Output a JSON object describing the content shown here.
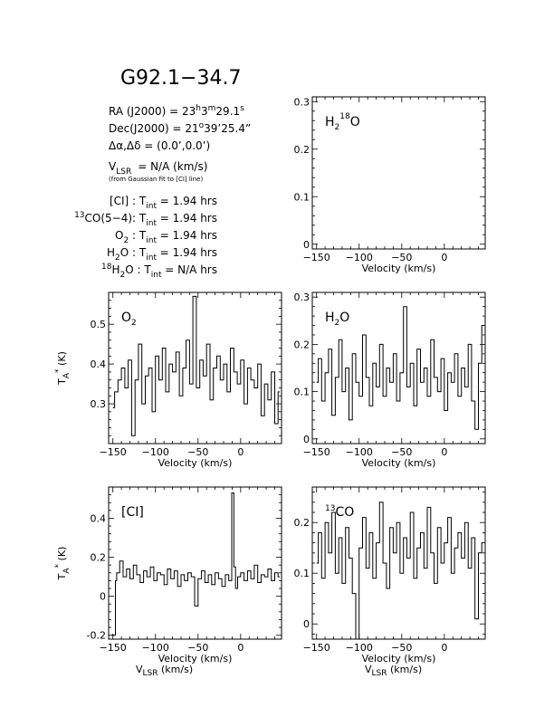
{
  "figure": {
    "title": "G92.1−34.7",
    "ra": {
      "prefix": "RA (J2000) = ",
      "value": "23",
      "h": "h",
      "m": "m",
      "rest": "3",
      "sec": "29.1",
      "s": "s"
    },
    "dec": {
      "prefix": "Dec(J2000) = ",
      "deg": "21",
      "degsym": "o",
      "rest": "39’25.4”"
    },
    "offset": {
      "text": "Δα,Δδ = (0.0’,0.0’)"
    },
    "vlsr": {
      "v": "V",
      "sub": "LSR",
      "rest": "= N/A (km/s)"
    },
    "vlsr_note": "(from Gaussian fit to [CI] line)",
    "integrations": [
      {
        "sup": "",
        "name": "[CI]",
        "sub": "",
        "name_end": " : ",
        "t": "T",
        "tsub": "int",
        "value": " = 1.94 hrs"
      },
      {
        "sup": "13",
        "name": "CO(5−4)",
        "sub": "",
        "name_end": ": ",
        "t": "T",
        "tsub": "int",
        "value": " = 1.94 hrs"
      },
      {
        "sup": "",
        "name": "O",
        "sub": "2",
        "name_end": " : ",
        "t": "T",
        "tsub": "int",
        "value": " = 1.94 hrs"
      },
      {
        "sup": "",
        "name": "H",
        "sub": "2",
        "name2": "O",
        "name_end": " : ",
        "t": "T",
        "tsub": "int",
        "value": " = 1.94 hrs"
      },
      {
        "sup": "18",
        "name": "H",
        "sub": "2",
        "name2": "O",
        "name_end": " : ",
        "t": "T",
        "tsub": "int",
        "value": " = N/A hrs"
      }
    ],
    "bottom_xlabel": {
      "v": "V",
      "sub": "LSR",
      "rest": " (km/s)"
    }
  },
  "chart_data": [
    {
      "id": "h218o",
      "type": "line",
      "label": {
        "pre": "H",
        "sub": "2",
        "sup": "18",
        "post": "O"
      },
      "xlabel": "Velocity (km/s)",
      "ylabel": "",
      "xlim": [
        -155,
        48
      ],
      "ylim": [
        -0.01,
        0.31
      ],
      "xticks": [
        -150,
        -100,
        -50,
        0
      ],
      "yticks": [
        0,
        0.1,
        0.2,
        0.3
      ],
      "ytick_labels": [
        "0",
        "0.1",
        "0.2",
        "0.3"
      ],
      "series": []
    },
    {
      "id": "o2",
      "type": "line",
      "label": {
        "pre": "O",
        "sub": "2",
        "sup": "",
        "post": ""
      },
      "xlabel": "Velocity (km/s)",
      "ylabel": {
        "t": "T",
        "sub": "A",
        "sup": "*",
        "rest": " (K)"
      },
      "xlim": [
        -155,
        48
      ],
      "ylim": [
        0.2,
        0.58
      ],
      "xticks": [
        -150,
        -100,
        -50,
        0
      ],
      "yticks": [
        0.3,
        0.4,
        0.5
      ],
      "ytick_labels": [
        "0.3",
        "0.4",
        "0.5"
      ],
      "series": [
        {
          "x": [
            -150,
            -146,
            -142,
            -138,
            -134,
            -130,
            -126,
            -122,
            -118,
            -114,
            -110,
            -106,
            -102,
            -98,
            -94,
            -90,
            -86,
            -82,
            -78,
            -74,
            -70,
            -66,
            -62,
            -58,
            -54,
            -50,
            -46,
            -42,
            -38,
            -34,
            -30,
            -26,
            -22,
            -18,
            -14,
            -10,
            -6,
            -2,
            2,
            6,
            10,
            14,
            18,
            22,
            26,
            30,
            34,
            38,
            42,
            46
          ],
          "y": [
            0.29,
            0.33,
            0.36,
            0.39,
            0.34,
            0.41,
            0.22,
            0.36,
            0.45,
            0.3,
            0.37,
            0.39,
            0.28,
            0.42,
            0.36,
            0.44,
            0.33,
            0.4,
            0.38,
            0.43,
            0.32,
            0.39,
            0.46,
            0.35,
            0.57,
            0.34,
            0.41,
            0.37,
            0.45,
            0.31,
            0.39,
            0.42,
            0.36,
            0.4,
            0.33,
            0.44,
            0.38,
            0.35,
            0.41,
            0.3,
            0.39,
            0.36,
            0.34,
            0.4,
            0.27,
            0.35,
            0.31,
            0.38,
            0.25,
            0.33
          ]
        }
      ]
    },
    {
      "id": "h2o",
      "type": "line",
      "label": {
        "pre": "H",
        "sub": "2",
        "sup": "",
        "post": "O"
      },
      "xlabel": "Velocity (km/s)",
      "ylabel": "",
      "xlim": [
        -155,
        48
      ],
      "ylim": [
        -0.01,
        0.31
      ],
      "xticks": [
        -150,
        -100,
        -50,
        0
      ],
      "yticks": [
        0,
        0.1,
        0.2,
        0.3
      ],
      "ytick_labels": [
        "0",
        "0.1",
        "0.2",
        "0.3"
      ],
      "series": [
        {
          "x": [
            -150,
            -146,
            -142,
            -138,
            -134,
            -130,
            -126,
            -122,
            -118,
            -114,
            -110,
            -106,
            -102,
            -98,
            -94,
            -90,
            -86,
            -82,
            -78,
            -74,
            -70,
            -66,
            -62,
            -58,
            -54,
            -50,
            -46,
            -42,
            -38,
            -34,
            -30,
            -26,
            -22,
            -18,
            -14,
            -10,
            -6,
            -2,
            2,
            6,
            10,
            14,
            18,
            22,
            26,
            30,
            34,
            38,
            42,
            46
          ],
          "y": [
            0.12,
            0.17,
            0.08,
            0.14,
            0.19,
            0.05,
            0.13,
            0.21,
            0.1,
            0.15,
            0.04,
            0.18,
            0.12,
            0.09,
            0.22,
            0.13,
            0.07,
            0.16,
            0.11,
            0.2,
            0.09,
            0.15,
            0.12,
            0.18,
            0.08,
            0.14,
            0.28,
            0.11,
            0.16,
            0.07,
            0.19,
            0.12,
            0.15,
            0.09,
            0.21,
            0.13,
            0.1,
            0.17,
            0.06,
            0.14,
            0.12,
            0.18,
            0.09,
            0.15,
            0.11,
            0.2,
            0.08,
            0.02,
            0.16,
            0.24
          ]
        }
      ]
    },
    {
      "id": "ci",
      "type": "line",
      "label": {
        "pre": "[CI]",
        "sub": "",
        "sup": "",
        "post": ""
      },
      "xlabel": "Velocity (km/s)",
      "ylabel": {
        "t": "T",
        "sub": "A",
        "sup": "*",
        "rest": " (K)"
      },
      "xlim": [
        -155,
        48
      ],
      "ylim": [
        -0.22,
        0.56
      ],
      "xticks": [
        -150,
        -100,
        -50,
        0
      ],
      "yticks": [
        -0.2,
        0,
        0.2,
        0.4
      ],
      "ytick_labels": [
        "-0.2",
        "0",
        "0.2",
        "0.4"
      ],
      "series": [
        {
          "x": [
            -152,
            -147,
            -147,
            -144,
            -140,
            -136,
            -132,
            -128,
            -124,
            -120,
            -116,
            -112,
            -108,
            -104,
            -100,
            -96,
            -92,
            -88,
            -84,
            -80,
            -76,
            -72,
            -68,
            -64,
            -60,
            -56,
            -52,
            -48,
            -44,
            -40,
            -36,
            -32,
            -28,
            -24,
            -20,
            -16,
            -12,
            -9,
            -7,
            -5,
            -2,
            2,
            6,
            10,
            14,
            18,
            22,
            26,
            30,
            34,
            38,
            42,
            46
          ],
          "y": [
            -0.2,
            -0.2,
            0.08,
            0.12,
            0.18,
            0.1,
            0.14,
            0.09,
            0.16,
            0.11,
            0.07,
            0.13,
            0.1,
            0.15,
            0.08,
            0.12,
            0.11,
            0.06,
            0.14,
            0.09,
            0.13,
            0.05,
            0.11,
            0.08,
            0.12,
            0.1,
            -0.05,
            0.09,
            0.13,
            0.07,
            0.11,
            0.06,
            0.12,
            0.09,
            0.05,
            0.11,
            0.08,
            0.53,
            0.15,
            0.04,
            0.1,
            0.12,
            0.08,
            0.13,
            0.09,
            0.16,
            0.07,
            0.11,
            0.1,
            0.14,
            0.08,
            0.12,
            0.1
          ]
        }
      ]
    },
    {
      "id": "co13",
      "type": "line",
      "label": {
        "pre": "CO",
        "sub": "",
        "sup": "13",
        "post": ""
      },
      "xlabel": "Velocity (km/s)",
      "ylabel": "",
      "xlim": [
        -155,
        48
      ],
      "ylim": [
        -0.03,
        0.27
      ],
      "xticks": [
        -150,
        -100,
        -50,
        0
      ],
      "yticks": [
        0,
        0.1,
        0.2
      ],
      "ytick_labels": [
        "0",
        "0.1",
        "0.2"
      ],
      "series": [
        {
          "x": [
            -150,
            -146,
            -142,
            -138,
            -134,
            -130,
            -126,
            -122,
            -118,
            -114,
            -110,
            -106,
            -102,
            -98,
            -94,
            -90,
            -86,
            -82,
            -78,
            -74,
            -70,
            -66,
            -62,
            -58,
            -54,
            -50,
            -46,
            -42,
            -38,
            -34,
            -30,
            -26,
            -22,
            -18,
            -14,
            -10,
            -6,
            -2,
            2,
            6,
            10,
            14,
            18,
            22,
            26,
            30,
            34,
            38,
            42,
            46
          ],
          "y": [
            0.12,
            0.18,
            0.09,
            0.2,
            0.14,
            0.22,
            0.1,
            0.17,
            0.08,
            0.19,
            0.13,
            0.06,
            -0.03,
            0.15,
            0.21,
            0.11,
            0.18,
            0.09,
            0.16,
            0.24,
            0.12,
            0.07,
            0.19,
            0.14,
            0.2,
            0.1,
            0.17,
            0.13,
            0.22,
            0.09,
            0.15,
            0.18,
            0.11,
            0.23,
            0.14,
            0.08,
            0.19,
            0.12,
            0.16,
            0.21,
            0.1,
            0.15,
            0.18,
            0.13,
            0.2,
            0.11,
            0.17,
            0.01,
            0.14,
            0.16
          ]
        }
      ]
    }
  ]
}
